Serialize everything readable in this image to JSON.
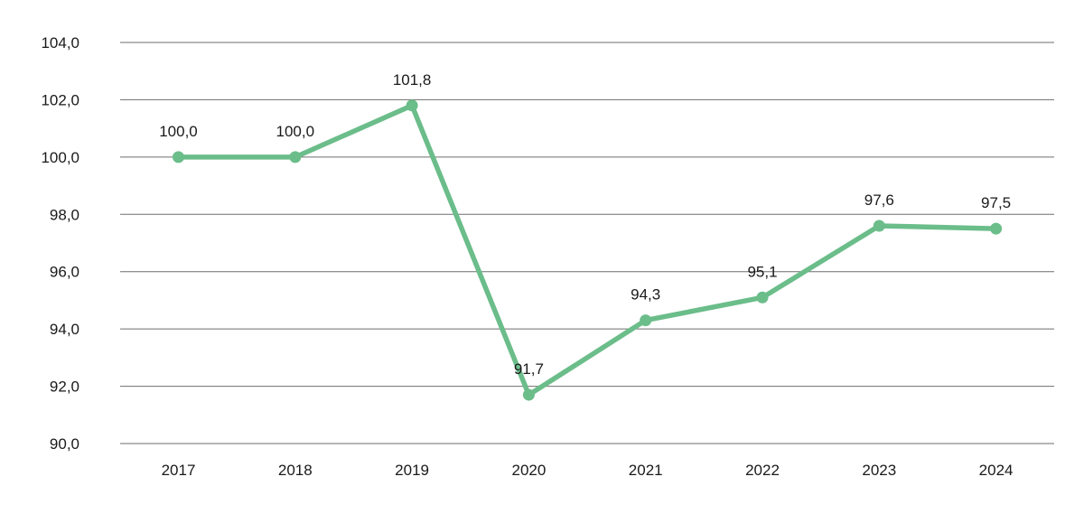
{
  "chart_data": {
    "type": "line",
    "title": "",
    "xlabel": "",
    "ylabel": "",
    "categories": [
      "2017",
      "2018",
      "2019",
      "2020",
      "2021",
      "2022",
      "2023",
      "2024"
    ],
    "series": [
      {
        "values": [
          100.0,
          100.0,
          101.8,
          91.7,
          94.3,
          95.1,
          97.6,
          97.5
        ],
        "data_labels": [
          "100,0",
          "100,0",
          "101,8",
          "91,7",
          "94,3",
          "95,1",
          "97,6",
          "97,5"
        ],
        "color": "#6bbd8a"
      }
    ],
    "ylim": [
      90,
      104
    ],
    "yticks": [
      90,
      92,
      94,
      96,
      98,
      100,
      102,
      104
    ],
    "ytick_labels": [
      "90,0",
      "92,0",
      "94,0",
      "96,0",
      "98,0",
      "100,0",
      "102,0",
      "104,0"
    ],
    "grid": true,
    "legend": "none"
  }
}
